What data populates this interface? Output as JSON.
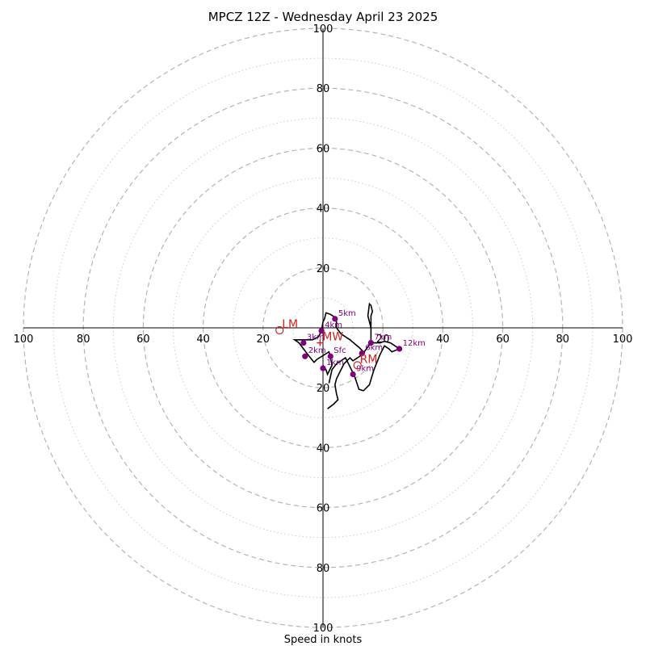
{
  "chart_data": {
    "type": "hodograph",
    "title": "MPCZ 12Z - Wednesday April 23 2025",
    "xlabel": "Speed in knots",
    "ring_labels": [
      20,
      40,
      60,
      80,
      100
    ],
    "axis_tick_labels": [
      "100",
      "80",
      "60",
      "40",
      "20"
    ],
    "max_speed": 100,
    "hodograph_line": {
      "color": "#000000",
      "points": [
        [
          2.0,
          -18.5
        ],
        [
          3.0,
          -14.0
        ],
        [
          4.5,
          -12.0
        ],
        [
          6.0,
          -11.0
        ],
        [
          7.5,
          -10.0
        ],
        [
          9.0,
          -13.0
        ],
        [
          10.5,
          -16.0
        ],
        [
          12.0,
          -20.5
        ],
        [
          13.5,
          -21.0
        ],
        [
          15.5,
          -19.0
        ],
        [
          17.0,
          -14.0
        ],
        [
          19.0,
          -9.0
        ],
        [
          20.5,
          -6.0
        ],
        [
          22.0,
          -7.0
        ],
        [
          23.0,
          -8.0
        ],
        [
          25.5,
          -7.0
        ],
        [
          22.5,
          -5.0
        ],
        [
          20.5,
          -4.5
        ],
        [
          19.0,
          -5.0
        ],
        [
          16.0,
          -5.0
        ],
        [
          16.0,
          0.0
        ],
        [
          16.0,
          4.0
        ],
        [
          16.5,
          5.5
        ],
        [
          16.0,
          7.5
        ],
        [
          15.5,
          8.0
        ],
        [
          15.0,
          4.0
        ],
        [
          16.0,
          0.0
        ],
        [
          16.0,
          -4.0
        ],
        [
          16.0,
          -5.0
        ],
        [
          13.0,
          -9.0
        ],
        [
          10.0,
          -11.0
        ],
        [
          9.0,
          -10.0
        ],
        [
          7.0,
          -12.0
        ],
        [
          6.0,
          -14.0
        ],
        [
          4.5,
          -17.0
        ],
        [
          4.0,
          -19.0
        ],
        [
          4.5,
          -22.0
        ],
        [
          5.0,
          -24.0
        ],
        [
          3.5,
          -25.5
        ],
        [
          1.5,
          -27.0
        ]
      ],
      "path2": [
        [
          0.0,
          -12.5
        ],
        [
          1.0,
          -14.0
        ],
        [
          1.5,
          -15.5
        ],
        [
          3.0,
          -12.5
        ],
        [
          2.5,
          -10.0
        ],
        [
          2.0,
          -8.0
        ],
        [
          -2.0,
          -10.5
        ],
        [
          -3.0,
          -11.5
        ],
        [
          -5.0,
          -9.0
        ],
        [
          -6.5,
          -7.0
        ],
        [
          -8.0,
          -5.0
        ],
        [
          -9.5,
          -4.0
        ],
        [
          -6.5,
          -4.0
        ],
        [
          -3.5,
          -4.0
        ],
        [
          -1.5,
          -3.0
        ],
        [
          -0.5,
          -1.0
        ],
        [
          0.0,
          2.0
        ],
        [
          0.5,
          3.0
        ],
        [
          1.0,
          5.0
        ],
        [
          2.5,
          4.5
        ],
        [
          4.0,
          3.5
        ],
        [
          4.5,
          2.0
        ],
        [
          4.5,
          0.0
        ],
        [
          6.0,
          -2.0
        ],
        [
          9.0,
          -4.0
        ],
        [
          12.0,
          -6.5
        ],
        [
          14.0,
          -8.5
        ]
      ]
    },
    "height_markers": [
      {
        "label": "Sfc",
        "u": 2.5,
        "v": -9.5
      },
      {
        "label": "1km",
        "u": -0.0,
        "v": -13.5
      },
      {
        "label": "2km",
        "u": -6.0,
        "v": -9.5
      },
      {
        "label": "3km",
        "u": -6.5,
        "v": -5.0
      },
      {
        "label": "4km",
        "u": -0.5,
        "v": -1.0
      },
      {
        "label": "5km",
        "u": 4.0,
        "v": 3.0
      },
      {
        "label": "6km",
        "u": 13.0,
        "v": -8.5
      },
      {
        "label": "7km",
        "u": 16.0,
        "v": -5.0
      },
      {
        "label": "9km",
        "u": 10.0,
        "v": -15.5
      },
      {
        "label": "12km",
        "u": 25.5,
        "v": -7.0
      }
    ],
    "storm_motion": [
      {
        "label": "LM",
        "u": -14.5,
        "v": -0.8,
        "type": "circle-open"
      },
      {
        "label": "RM",
        "u": 11.5,
        "v": -12.5,
        "type": "circle-open"
      },
      {
        "label": "MW",
        "u": -1.0,
        "v": -5.0,
        "type": "plus"
      }
    ],
    "colors": {
      "ring_major": "#b4b4b4",
      "ring_minor": "#cccccc",
      "marker": "#800080",
      "storm": "#cc2222"
    }
  }
}
